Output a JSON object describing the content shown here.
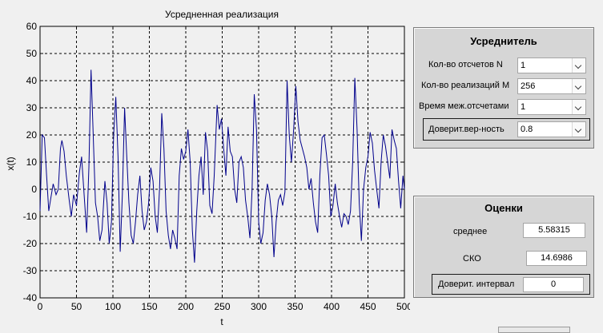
{
  "chart_data": {
    "type": "line",
    "title": "Усредненная реализация",
    "xlabel": "t",
    "ylabel": "x(t)",
    "xlim": [
      0,
      500
    ],
    "ylim": [
      -40,
      60
    ],
    "x_ticks": [
      "0",
      "50",
      "100",
      "150",
      "200",
      "250",
      "300",
      "350",
      "400",
      "450",
      "500"
    ],
    "y_ticks": [
      "60",
      "50",
      "40",
      "30",
      "20",
      "10",
      "0",
      "-10",
      "-20",
      "-30",
      "-40"
    ],
    "grid": true,
    "line_color": "#00008b",
    "series": [
      {
        "points": [
          [
            0,
            -8
          ],
          [
            3,
            20
          ],
          [
            6,
            19
          ],
          [
            9,
            5
          ],
          [
            12,
            -8
          ],
          [
            15,
            -3
          ],
          [
            18,
            2
          ],
          [
            22,
            -2
          ],
          [
            25,
            0
          ],
          [
            28,
            15
          ],
          [
            30,
            18
          ],
          [
            33,
            14
          ],
          [
            36,
            5
          ],
          [
            40,
            -4
          ],
          [
            43,
            -10
          ],
          [
            46,
            -2
          ],
          [
            50,
            -6
          ],
          [
            54,
            6
          ],
          [
            57,
            12
          ],
          [
            60,
            0
          ],
          [
            64,
            -16
          ],
          [
            67,
            8
          ],
          [
            70,
            44
          ],
          [
            73,
            20
          ],
          [
            76,
            -5
          ],
          [
            79,
            -10
          ],
          [
            82,
            -19
          ],
          [
            85,
            -15
          ],
          [
            89,
            3
          ],
          [
            92,
            -5
          ],
          [
            95,
            -20
          ],
          [
            98,
            -12
          ],
          [
            101,
            20
          ],
          [
            104,
            34
          ],
          [
            107,
            12
          ],
          [
            110,
            -23
          ],
          [
            113,
            -2
          ],
          [
            116,
            30
          ],
          [
            119,
            12
          ],
          [
            122,
            -5
          ],
          [
            125,
            -17
          ],
          [
            128,
            -20
          ],
          [
            131,
            -12
          ],
          [
            134,
            -2
          ],
          [
            137,
            5
          ],
          [
            140,
            -8
          ],
          [
            143,
            -15
          ],
          [
            146,
            -12
          ],
          [
            149,
            -5
          ],
          [
            152,
            8
          ],
          [
            155,
            3
          ],
          [
            158,
            -10
          ],
          [
            161,
            -16
          ],
          [
            164,
            0
          ],
          [
            167,
            28
          ],
          [
            170,
            15
          ],
          [
            173,
            -8
          ],
          [
            176,
            -17
          ],
          [
            179,
            -22
          ],
          [
            182,
            -15
          ],
          [
            185,
            -18
          ],
          [
            188,
            -22
          ],
          [
            191,
            5
          ],
          [
            194,
            15
          ],
          [
            197,
            11
          ],
          [
            200,
            14
          ],
          [
            203,
            22
          ],
          [
            206,
            10
          ],
          [
            209,
            -15
          ],
          [
            212,
            -27
          ],
          [
            215,
            -8
          ],
          [
            218,
            5
          ],
          [
            221,
            12
          ],
          [
            224,
            -2
          ],
          [
            227,
            21
          ],
          [
            230,
            14
          ],
          [
            233,
            -6
          ],
          [
            236,
            -9
          ],
          [
            239,
            5
          ],
          [
            243,
            31
          ],
          [
            246,
            22
          ],
          [
            249,
            26
          ],
          [
            252,
            15
          ],
          [
            255,
            5
          ],
          [
            258,
            23
          ],
          [
            261,
            14
          ],
          [
            264,
            12
          ],
          [
            267,
            0
          ],
          [
            270,
            -5
          ],
          [
            273,
            10
          ],
          [
            276,
            12
          ],
          [
            279,
            8
          ],
          [
            282,
            -4
          ],
          [
            285,
            -10
          ],
          [
            288,
            -18
          ],
          [
            291,
            0
          ],
          [
            294,
            35
          ],
          [
            297,
            22
          ],
          [
            300,
            -12
          ],
          [
            303,
            -20
          ],
          [
            306,
            -16
          ],
          [
            309,
            -4
          ],
          [
            312,
            2
          ],
          [
            315,
            -2
          ],
          [
            318,
            -10
          ],
          [
            321,
            -25
          ],
          [
            324,
            -12
          ],
          [
            327,
            -4
          ],
          [
            330,
            -2
          ],
          [
            333,
            -6
          ],
          [
            336,
            -1
          ],
          [
            339,
            40
          ],
          [
            342,
            20
          ],
          [
            345,
            10
          ],
          [
            348,
            22
          ],
          [
            351,
            38
          ],
          [
            354,
            25
          ],
          [
            357,
            18
          ],
          [
            360,
            15
          ],
          [
            363,
            12
          ],
          [
            366,
            8
          ],
          [
            369,
            0
          ],
          [
            372,
            4
          ],
          [
            375,
            -5
          ],
          [
            378,
            -12
          ],
          [
            381,
            -16
          ],
          [
            384,
            5
          ],
          [
            387,
            19
          ],
          [
            390,
            20
          ],
          [
            393,
            13
          ],
          [
            396,
            5
          ],
          [
            399,
            -10
          ],
          [
            402,
            -6
          ],
          [
            405,
            2
          ],
          [
            408,
            -5
          ],
          [
            411,
            -10
          ],
          [
            414,
            -14
          ],
          [
            417,
            -9
          ],
          [
            420,
            -10
          ],
          [
            423,
            -13
          ],
          [
            426,
            -8
          ],
          [
            429,
            10
          ],
          [
            432,
            41
          ],
          [
            435,
            22
          ],
          [
            438,
            -5
          ],
          [
            441,
            -19
          ],
          [
            444,
            0
          ],
          [
            447,
            8
          ],
          [
            450,
            12
          ],
          [
            453,
            21
          ],
          [
            456,
            17
          ],
          [
            459,
            7
          ],
          [
            462,
            0
          ],
          [
            465,
            -7
          ],
          [
            468,
            10
          ],
          [
            471,
            20
          ],
          [
            474,
            16
          ],
          [
            477,
            10
          ],
          [
            480,
            4
          ],
          [
            483,
            22
          ],
          [
            486,
            18
          ],
          [
            489,
            15
          ],
          [
            492,
            3
          ],
          [
            495,
            -7
          ],
          [
            498,
            5
          ],
          [
            500,
            0
          ]
        ]
      }
    ]
  },
  "averager": {
    "title": "Усреднитель",
    "rows": [
      {
        "label": "Кол-во отсчетов N",
        "value": "1"
      },
      {
        "label": "Кол-во реализаций M",
        "value": "256"
      },
      {
        "label": "Время меж.отсчетами",
        "value": "1"
      },
      {
        "label": "Доверит.вер-ность",
        "value": "0.8"
      }
    ]
  },
  "estimates": {
    "title": "Оценки",
    "mean_label": "среднее",
    "mean_value": "5.58315",
    "sko_label": "СКО",
    "sko_value": "14.6986",
    "interval_label": "Доверит. интервал",
    "interval_value": "0"
  }
}
